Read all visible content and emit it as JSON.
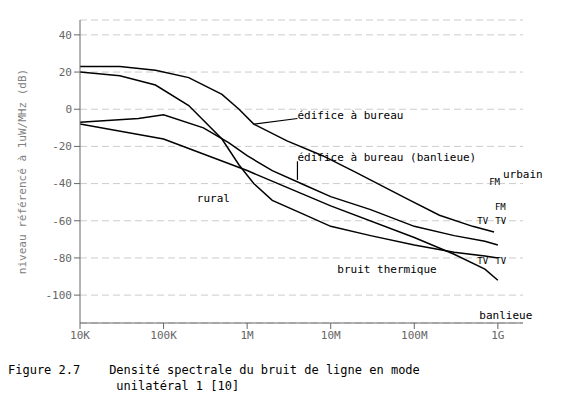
{
  "chart_data": {
    "type": "line",
    "log": "x",
    "grid": true,
    "color": "#000000",
    "caption": "Figure 2.7    Densité spectrale du bruit de ligne en mode\n               unilatéral 1 [10]",
    "y_label": "niveau référencé à 1uW/MHz (dB)",
    "xlim": [
      10000,
      2000000000
    ],
    "xticks": [
      {
        "value": 10000,
        "label": "10K"
      },
      {
        "value": 100000,
        "label": "100K"
      },
      {
        "value": 1000000,
        "label": "1M"
      },
      {
        "value": 10000000,
        "label": "10M"
      },
      {
        "value": 100000000,
        "label": "100M"
      },
      {
        "value": 1000000000,
        "label": "1G"
      }
    ],
    "ylim": [
      -115,
      48
    ],
    "yticks": [
      40,
      20,
      0,
      -20,
      -40,
      -60,
      -80,
      -100
    ],
    "series": [
      {
        "x": [
          10000,
          30000,
          80000,
          200000,
          500000,
          800000,
          1200000,
          3000000,
          8000000,
          20000000,
          80000000,
          200000000,
          500000000,
          900000000
        ],
        "values": [
          23,
          23,
          21,
          17,
          8,
          0,
          -8,
          -17,
          -25,
          -34,
          -48,
          -57,
          -63,
          -66
        ]
      },
      {
        "x": [
          10000,
          50000,
          100000,
          300000,
          600000,
          1000000,
          2000000,
          5000000,
          10000000,
          30000000,
          100000000,
          300000000,
          700000000,
          1000000000
        ],
        "values": [
          -7,
          -5,
          -3,
          -10,
          -18,
          -25,
          -33,
          -41,
          -47,
          -54,
          -63,
          -68,
          -71,
          -73
        ]
      },
      {
        "x": [
          10000,
          30000,
          80000,
          200000,
          500000,
          800000,
          1200000,
          2000000,
          5000000,
          10000000,
          30000000,
          100000000,
          300000000,
          700000000,
          1000000000
        ],
        "values": [
          20,
          18,
          13,
          2,
          -16,
          -30,
          -40,
          -49,
          -57,
          -63,
          -68,
          -73,
          -77,
          -79,
          -80
        ]
      },
      {
        "x": [
          10000,
          100000,
          1000000,
          10000000,
          100000000,
          300000000,
          700000000,
          1000000000
        ],
        "values": [
          -8,
          -16,
          -33,
          -52,
          -69,
          -78,
          -86,
          -92
        ]
      }
    ],
    "annotations": [
      {
        "text": "édifice à bureau",
        "x": 4000000,
        "y": -5,
        "arrow": [
          1200000,
          -8
        ]
      },
      {
        "text": "édifice à bureau (banlieue)",
        "x": 4000000,
        "y": -28,
        "arrow": [
          4000000,
          -38
        ]
      },
      {
        "text": "rural",
        "x": 250000,
        "y": -50
      },
      {
        "text": "bruit thermique",
        "x": 12000000,
        "y": -88
      },
      {
        "text": "FM",
        "x": 787200000,
        "y": -41
      },
      {
        "text": "FM",
        "x": 921500000,
        "y": -54
      },
      {
        "text": "TV",
        "x": 785700000,
        "y": -62
      },
      {
        "text": "TV",
        "x": 931000000,
        "y": -62
      },
      {
        "text": "TV",
        "x": 785700000,
        "y": -83
      },
      {
        "text": "TV",
        "x": 931000000,
        "y": -83
      },
      {
        "text": "urbain",
        "x": 1150000000,
        "y": -37
      },
      {
        "text": "banlieue",
        "x": 600000000,
        "y": -113
      }
    ]
  }
}
